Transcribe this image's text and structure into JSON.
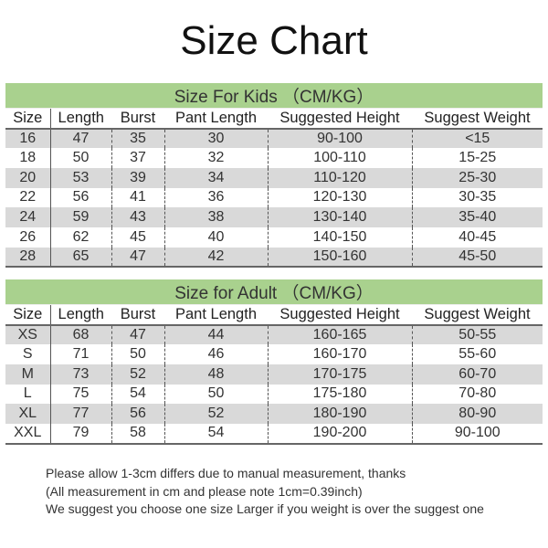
{
  "title": "Size Chart",
  "columns": [
    "Size",
    "Length",
    "Burst",
    "Pant Length",
    "Suggested Height",
    "Suggest Weight"
  ],
  "colors": {
    "banner": "#a9d18e",
    "stripe": "#d9d9d9"
  },
  "kids": {
    "banner": "Size For Kids （CM/KG）",
    "rows": [
      [
        "16",
        "47",
        "35",
        "30",
        "90-100",
        "<15"
      ],
      [
        "18",
        "50",
        "37",
        "32",
        "100-110",
        "15-25"
      ],
      [
        "20",
        "53",
        "39",
        "34",
        "110-120",
        "25-30"
      ],
      [
        "22",
        "56",
        "41",
        "36",
        "120-130",
        "30-35"
      ],
      [
        "24",
        "59",
        "43",
        "38",
        "130-140",
        "35-40"
      ],
      [
        "26",
        "62",
        "45",
        "40",
        "140-150",
        "40-45"
      ],
      [
        "28",
        "65",
        "47",
        "42",
        "150-160",
        "45-50"
      ]
    ]
  },
  "adult": {
    "banner": "Size for Adult （CM/KG）",
    "rows": [
      [
        "XS",
        "68",
        "47",
        "44",
        "160-165",
        "50-55"
      ],
      [
        "S",
        "71",
        "50",
        "46",
        "160-170",
        "55-60"
      ],
      [
        "M",
        "73",
        "52",
        "48",
        "170-175",
        "60-70"
      ],
      [
        "L",
        "75",
        "54",
        "50",
        "175-180",
        "70-80"
      ],
      [
        "XL",
        "77",
        "56",
        "52",
        "180-190",
        "80-90"
      ],
      [
        "XXL",
        "79",
        "58",
        "54",
        "190-200",
        "90-100"
      ]
    ]
  },
  "notes": [
    "Please allow 1-3cm differs due to manual measurement, thanks",
    "(All measurement in cm and please note 1cm=0.39inch)",
    "We suggest you choose one size Larger if you weight is over the suggest one"
  ]
}
